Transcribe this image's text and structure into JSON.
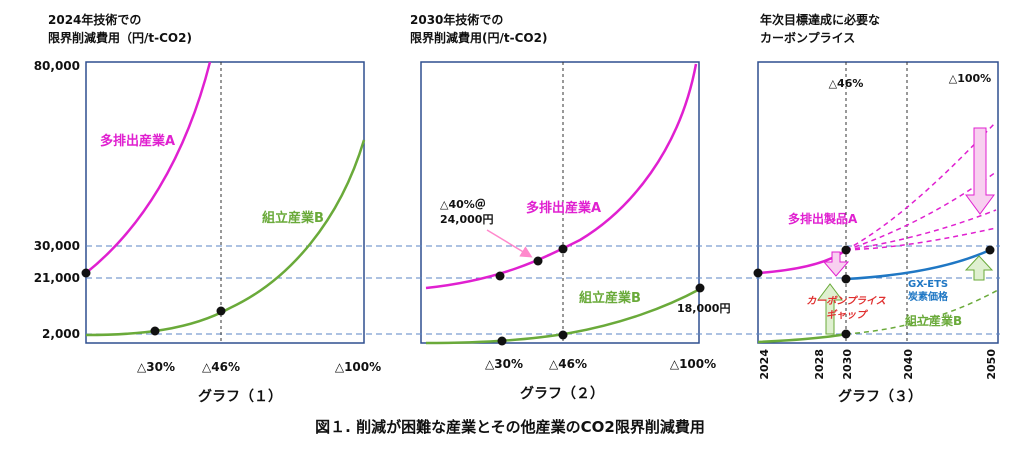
{
  "figure_caption": "図１. 削減が困難な産業とその他産業のCO2限界削減費用",
  "chart_data": [
    {
      "type": "line",
      "panel_label": "グラフ（１）",
      "title_line1": "2024年技術での",
      "title_line2": "限界削減費用（円/t-CO2)",
      "y_ticks": [
        "80,000",
        "30,000",
        "21,000",
        "2,000"
      ],
      "x_ticks": [
        "△30%",
        "△46%",
        "△100%"
      ],
      "series": [
        {
          "name": "多排出産業A",
          "color": "#e020d0"
        },
        {
          "name": "組立産業B",
          "color": "#6aaa3a"
        }
      ]
    },
    {
      "type": "line",
      "panel_label": "グラフ（２）",
      "title_line1": "2030年技術での",
      "title_line2": "限界削減費用(円/t-CO2)",
      "x_ticks": [
        "△30%",
        "△46%",
        "△100%"
      ],
      "series": [
        {
          "name": "多排出産業A",
          "color": "#e020d0"
        },
        {
          "name": "組立産業B",
          "color": "#6aaa3a"
        }
      ],
      "annotations": {
        "a40_line1": "△40%＠",
        "a40_line2": "24,000円",
        "b_end": "18,000円"
      }
    },
    {
      "type": "line",
      "panel_label": "グラフ（３）",
      "title_line1": "年次目標達成に必要な",
      "title_line2": "カーボンプライス",
      "x_ticks": [
        "2024",
        "2028",
        "2030",
        "2040",
        "2050"
      ],
      "top_labels": [
        "△46%",
        "△100%"
      ],
      "series": [
        {
          "name": "多排出製品A",
          "color": "#e020d0"
        },
        {
          "name": "組立産業B",
          "color": "#6aaa3a"
        },
        {
          "name_line1": "GX-ETS",
          "name_line2": "炭素価格",
          "color": "#1f77c4"
        }
      ],
      "gap_line1": "カーボンプライス",
      "gap_line2": "ギャップ"
    }
  ]
}
